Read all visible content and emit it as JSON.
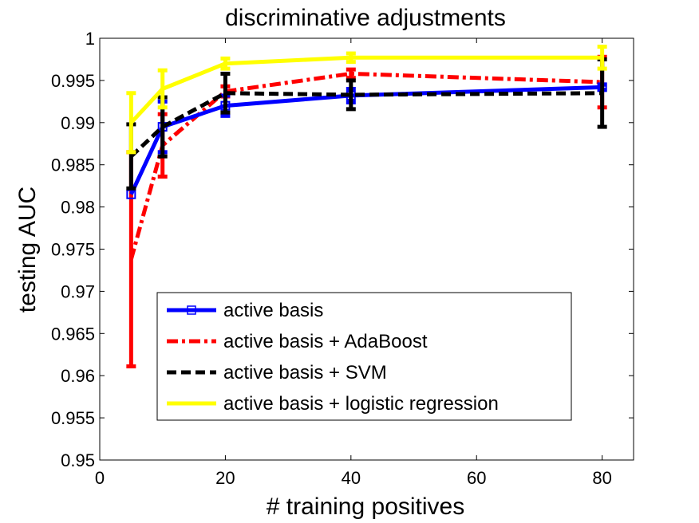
{
  "chart_data": {
    "type": "line",
    "title": "discriminative adjustments",
    "xlabel": "# training positives",
    "ylabel": "testing AUC",
    "xlim": [
      0,
      85
    ],
    "ylim": [
      0.95,
      1.0
    ],
    "x_ticks": [
      0,
      20,
      40,
      60,
      80
    ],
    "x_tick_labels": [
      "0",
      "20",
      "40",
      "60",
      "80"
    ],
    "y_ticks": [
      0.95,
      0.955,
      0.96,
      0.965,
      0.97,
      0.975,
      0.98,
      0.985,
      0.99,
      0.995,
      1.0
    ],
    "y_tick_labels": [
      "0.95",
      "0.955",
      "0.96",
      "0.965",
      "0.97",
      "0.975",
      "0.98",
      "0.985",
      "0.99",
      "0.995",
      "1"
    ],
    "grid": false,
    "legend_position": "lower-center",
    "x": [
      5,
      10,
      20,
      40,
      80
    ],
    "series": [
      {
        "name": "active basis",
        "color": "#0000ff",
        "dash": "solid",
        "marker": "square",
        "values": [
          0.9815,
          0.9895,
          0.992,
          0.9932,
          0.9942
        ],
        "errors": [
          0.0,
          0.003,
          0.0012,
          0.0008,
          0.0003
        ]
      },
      {
        "name": "active basis + AdaBoost",
        "color": "#ff0000",
        "dash": "dashdot",
        "marker": "none",
        "values": [
          0.9738,
          0.9873,
          0.9937,
          0.9958,
          0.9948
        ],
        "errors": [
          0.0127,
          0.0037,
          0.0006,
          0.0005,
          0.003
        ]
      },
      {
        "name": "active basis + SVM",
        "color": "#000000",
        "dash": "dashed",
        "marker": "none",
        "values": [
          0.986,
          0.9895,
          0.9935,
          0.9933,
          0.9935
        ],
        "errors": [
          0.0038,
          0.0035,
          0.0023,
          0.0017,
          0.004
        ]
      },
      {
        "name": "active basis + logistic regression",
        "color": "#ffff00",
        "dash": "solid",
        "marker": "none",
        "values": [
          0.99,
          0.994,
          0.997,
          0.9977,
          0.9977
        ],
        "errors": [
          0.0035,
          0.0022,
          0.0006,
          0.0005,
          0.0013
        ]
      }
    ]
  }
}
